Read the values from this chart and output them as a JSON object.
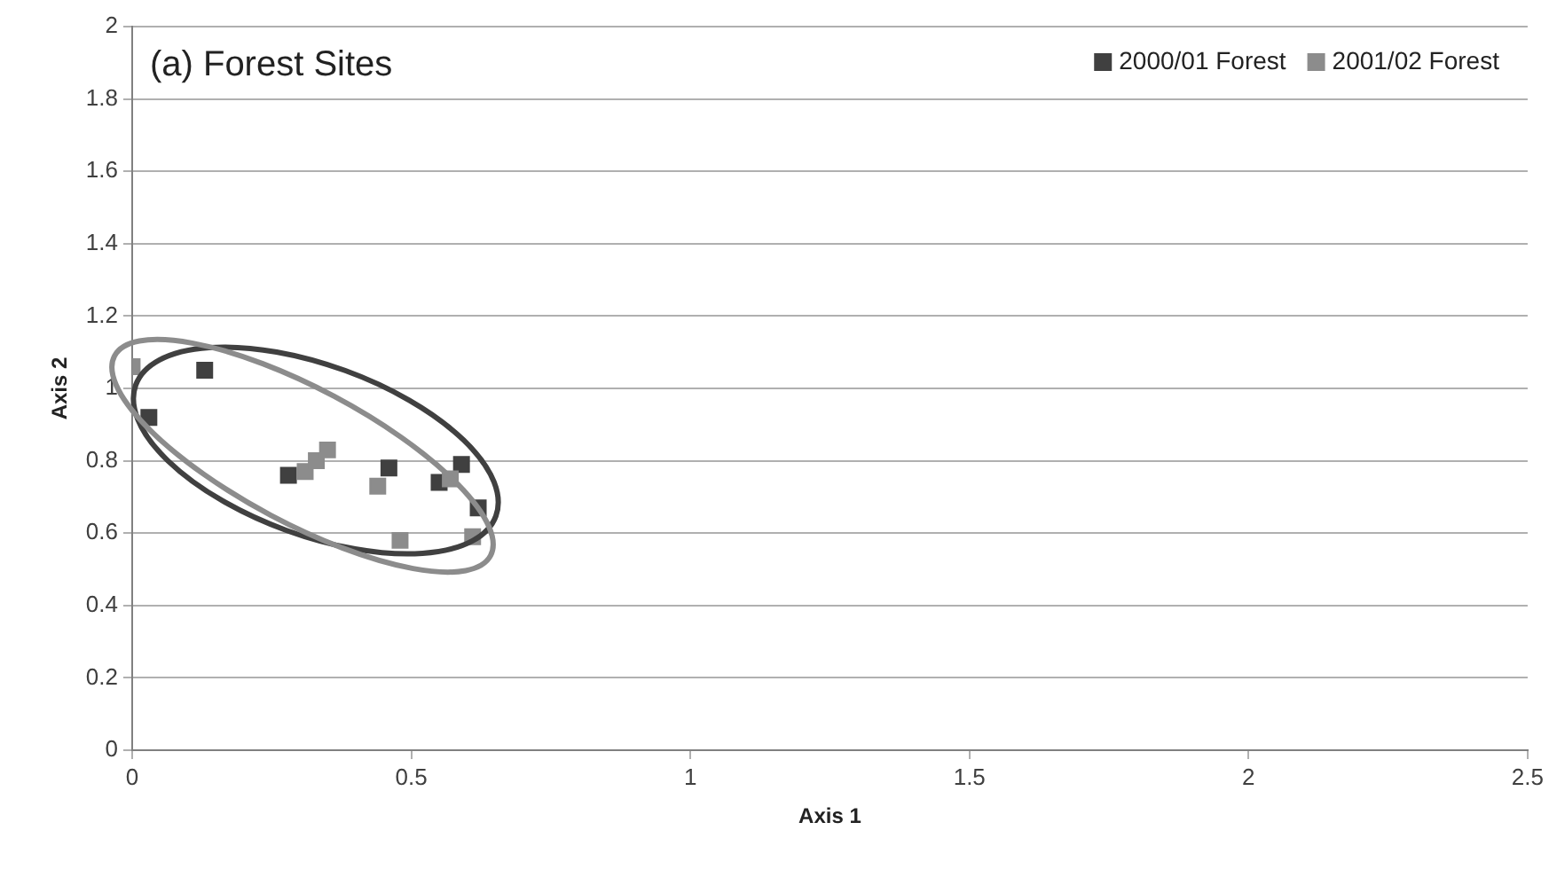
{
  "chart_data": {
    "type": "scatter",
    "title": "(a) Forest Sites",
    "xlabel": "Axis 1",
    "ylabel": "Axis 2",
    "xlim": [
      0,
      2.5
    ],
    "xticks": [
      0,
      0.5,
      1,
      1.5,
      2,
      2.5
    ],
    "ylim": [
      0,
      2
    ],
    "yticks": [
      0,
      {
        "value": 0.2,
        "label": "0.2"
      },
      {
        "value": 0.4,
        "label": "0.4"
      },
      {
        "value": 0.6,
        "label": "0.6"
      },
      {
        "value": 0.8,
        "label": "0.8"
      },
      1,
      {
        "value": 1.2,
        "label": "1.2"
      },
      {
        "value": 1.4,
        "label": "1.4"
      },
      {
        "value": 1.6,
        "label": "1.6"
      },
      {
        "value": 1.8,
        "label": "1.8"
      },
      2
    ],
    "grid": "y",
    "legend": "top right",
    "marker": "square",
    "series": [
      {
        "name": "2000/01 Forest",
        "color": "#404040",
        "x": [
          0.13,
          0.03,
          0.28,
          0.46,
          0.55,
          0.59,
          0.62
        ],
        "values": [
          1.05,
          0.92,
          0.76,
          0.78,
          0.74,
          0.79,
          0.67
        ]
      },
      {
        "name": "2001/02 Forest",
        "color": "#8c8c8c",
        "x": [
          0,
          0.31,
          0.33,
          0.35,
          0.44,
          0.48,
          0.57,
          0.61
        ],
        "values": [
          1.06,
          0.77,
          0.8,
          0.83,
          0.73,
          0.58,
          0.75,
          0.59
        ]
      }
    ]
  }
}
